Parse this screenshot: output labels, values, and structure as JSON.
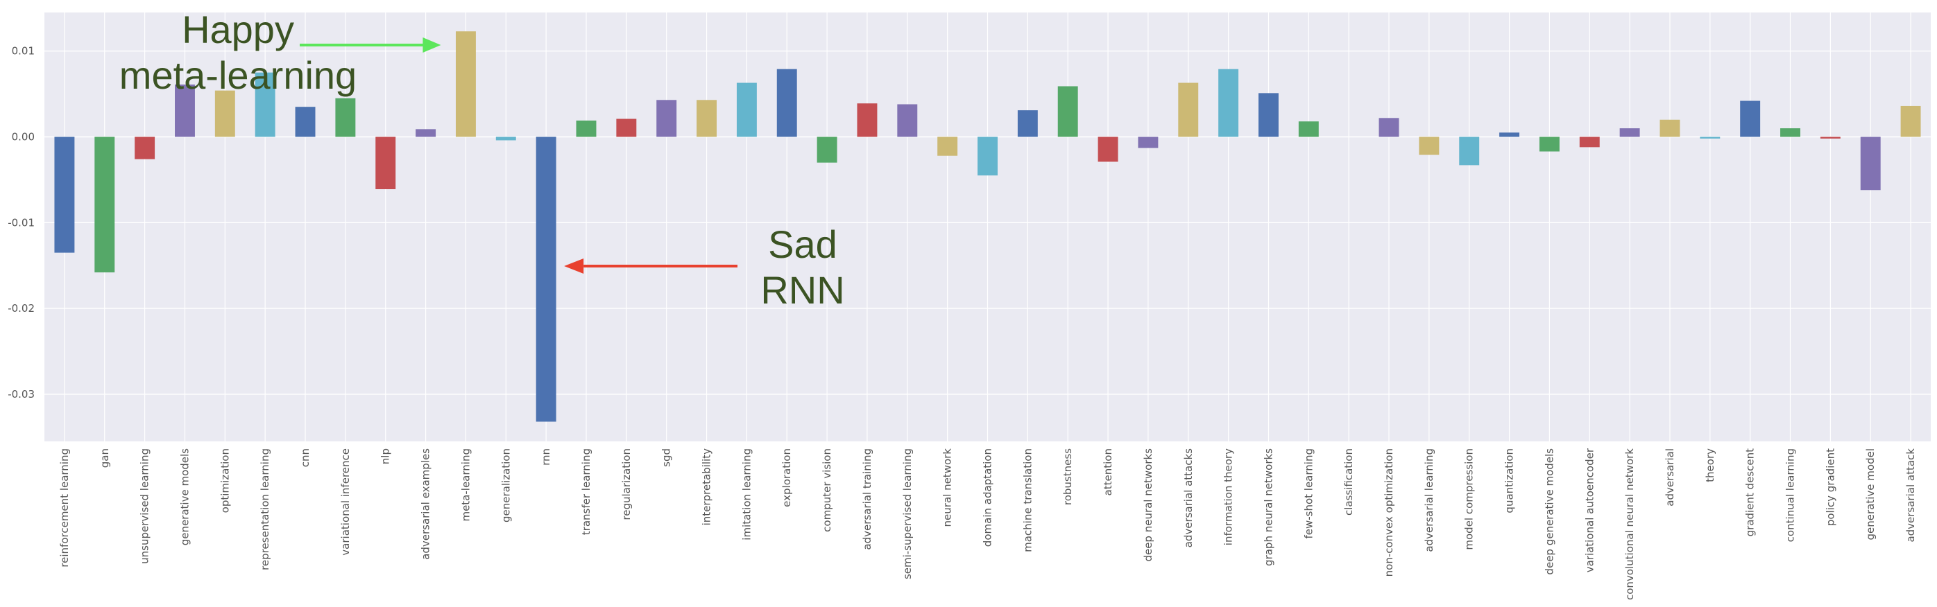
{
  "chart_data": {
    "type": "bar",
    "title": "",
    "xlabel": "",
    "ylabel": "",
    "ylim": [
      -0.0355,
      0.0145
    ],
    "yticks": [
      0.01,
      0.0,
      -0.01,
      -0.02,
      -0.03
    ],
    "ytick_labels": [
      "0.01",
      "0.00",
      "-0.01",
      "-0.02",
      "-0.03"
    ],
    "grid": true,
    "categories": [
      "reinforcement learning",
      "gan",
      "unsupervised learning",
      "generative models",
      "optimization",
      "representation learning",
      "cnn",
      "variational inference",
      "nlp",
      "adversarial examples",
      "meta-learning",
      "generalization",
      "rnn",
      "transfer learning",
      "regularization",
      "sgd",
      "interpretability",
      "imitation learning",
      "exploration",
      "computer vision",
      "adversarial training",
      "semi-supervised learning",
      "neural network",
      "domain adaptation",
      "machine translation",
      "robustness",
      "attention",
      "deep neural networks",
      "adversarial attacks",
      "information theory",
      "graph neural networks",
      "few-shot learning",
      "classification",
      "non-convex optimization",
      "adversarial learning",
      "model compression",
      "quantization",
      "deep generative models",
      "variational autoencoder",
      "convolutional neural network",
      "adversarial",
      "theory",
      "gradient descent",
      "continual learning",
      "policy gradient",
      "generative model",
      "adversarial attack"
    ],
    "values": [
      -0.0135,
      -0.0158,
      -0.0026,
      0.0061,
      0.0054,
      0.0075,
      0.0035,
      0.0045,
      -0.0061,
      0.0009,
      0.0123,
      -0.0004,
      -0.0332,
      0.0019,
      0.0021,
      0.0043,
      0.0043,
      0.0063,
      0.0079,
      -0.003,
      0.0039,
      0.0038,
      -0.0022,
      -0.0045,
      0.0031,
      0.0059,
      -0.0029,
      -0.0013,
      0.0063,
      0.0079,
      0.0051,
      0.0018,
      0.0,
      0.0022,
      -0.0021,
      -0.0033,
      0.0005,
      -0.0017,
      -0.0012,
      0.001,
      0.002,
      -0.0002,
      0.0042,
      0.001,
      -0.0002,
      -0.0062,
      0.0036
    ],
    "bar_color_cycle": [
      "#4c72b0",
      "#55a868",
      "#c44e52",
      "#8172b2",
      "#ccb974",
      "#64b5cd"
    ],
    "annotations": [
      {
        "text": [
          "Happy",
          "meta-learning"
        ],
        "target": "meta-learning",
        "arrow_color": "#5ce65c"
      },
      {
        "text": [
          "Sad",
          "RNN"
        ],
        "target": "rnn",
        "arrow_color": "#e8412f"
      }
    ],
    "annotation_text_color": "#3b5323",
    "background_color": "#eaeaf2",
    "grid_color": "#ffffff"
  }
}
